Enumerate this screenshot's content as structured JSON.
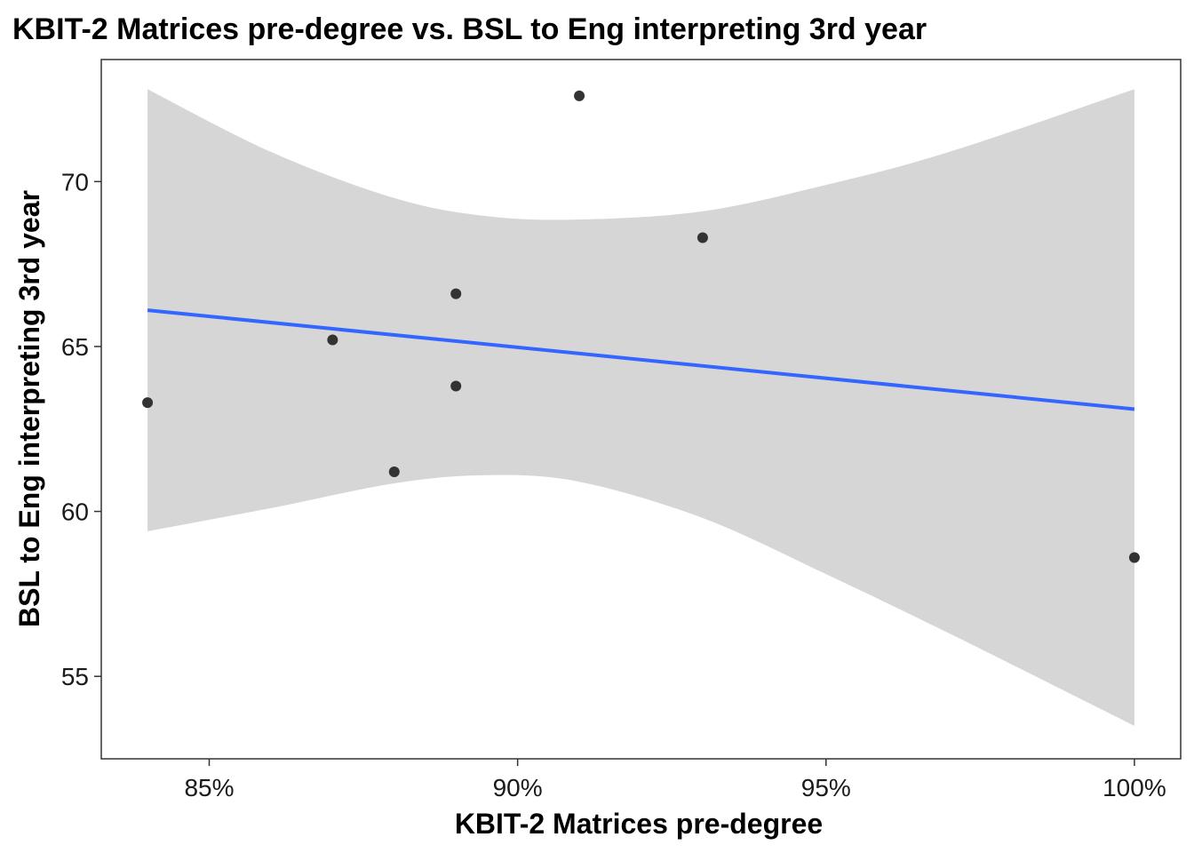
{
  "chart_data": {
    "type": "scatter",
    "title": "KBIT-2 Matrices pre-degree vs. BSL to Eng interpreting 3rd year",
    "xlabel": "KBIT-2 Matrices pre-degree",
    "ylabel": "BSL to Eng interpreting 3rd year",
    "xlim": [
      0.8325,
      1.0075
    ],
    "ylim": [
      52.5,
      73.7
    ],
    "x_ticks": [
      0.85,
      0.9,
      0.95,
      1.0
    ],
    "x_tick_labels": [
      "85%",
      "90%",
      "95%",
      "100%"
    ],
    "y_ticks": [
      55,
      60,
      65,
      70
    ],
    "y_tick_labels": [
      "55",
      "60",
      "65",
      "70"
    ],
    "grid": false,
    "legend": "none",
    "points": [
      {
        "x": 0.84,
        "y": 63.3
      },
      {
        "x": 0.87,
        "y": 65.2
      },
      {
        "x": 0.88,
        "y": 61.2
      },
      {
        "x": 0.89,
        "y": 66.6
      },
      {
        "x": 0.89,
        "y": 63.8
      },
      {
        "x": 0.91,
        "y": 72.6
      },
      {
        "x": 0.93,
        "y": 68.3
      },
      {
        "x": 1.0,
        "y": 58.6
      }
    ],
    "fit_line": {
      "method": "linear",
      "x": [
        0.84,
        1.0
      ],
      "y": [
        66.1,
        63.1
      ]
    },
    "confidence_band": {
      "x": [
        0.84,
        0.86,
        0.88,
        0.895,
        0.91,
        0.93,
        0.95,
        0.97,
        1.0
      ],
      "upper": [
        72.8,
        70.9,
        69.5,
        68.95,
        68.85,
        69.1,
        69.9,
        70.9,
        72.8
      ],
      "lower": [
        59.4,
        60.1,
        60.85,
        61.1,
        60.9,
        59.8,
        58.1,
        56.3,
        53.5
      ]
    },
    "colors": {
      "point": "#333333",
      "fit_line": "#3366FF",
      "band": "#d6d6d6",
      "panel_border": "#333333"
    }
  }
}
